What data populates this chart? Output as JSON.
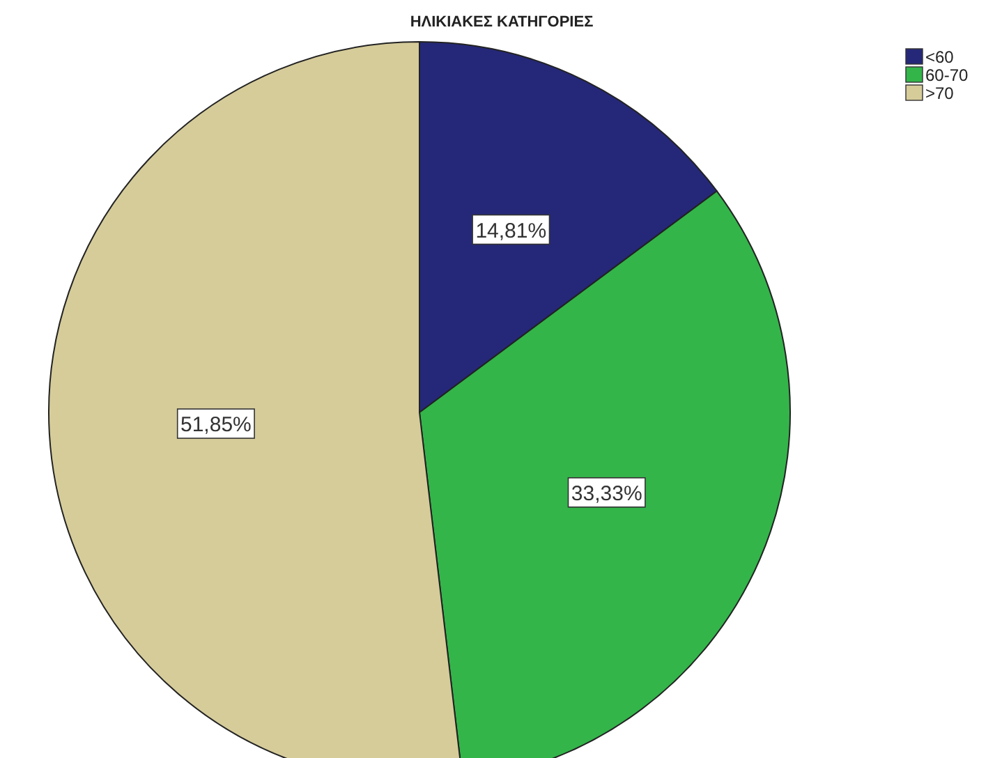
{
  "chart_data": {
    "type": "pie",
    "title": "ΗΛΙΚΙΑΚΕΣ ΚΑΤΗΓΟΡΙΕΣ",
    "categories": [
      "<60",
      "60-70",
      ">70"
    ],
    "values": [
      14.81,
      33.33,
      51.85
    ],
    "colors": [
      "#252878",
      "#33b54a",
      "#d6cc9a"
    ],
    "value_labels": [
      "14,81%",
      "33,33%",
      "51,85%"
    ],
    "legend": "top right"
  }
}
